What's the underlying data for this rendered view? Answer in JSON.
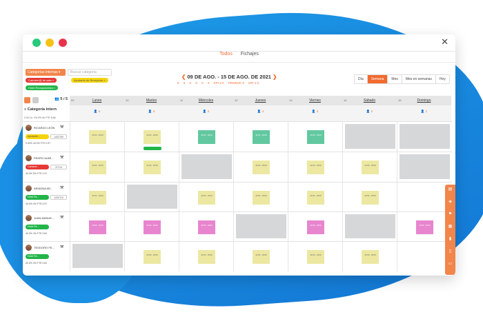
{
  "tabs": [
    "Todos",
    "Fichajes"
  ],
  "filters": {
    "category_button": "Categorías internas",
    "search_placeholder": "Buscar categoría",
    "chips": [
      {
        "label": "Camarer@ de sala",
        "color": "#e53935"
      },
      {
        "label": "Ayudante de Recepción",
        "color": "#f5d40f"
      },
      {
        "label": "Hotel Recepcionista",
        "color": "#22b54a"
      }
    ]
  },
  "header": {
    "period": "09 DE AGO. - 15 DE AGO. DE 2021",
    "kpis": [
      "0",
      "0",
      "0",
      "0",
      "0",
      "0",
      "KPI 3 0",
      "PRODUC 0",
      "KPI 1 0"
    ]
  },
  "views": [
    "Día",
    "Semana",
    "Mes",
    "Mes en semanas",
    "Hoy"
  ],
  "active_view": "Semana",
  "sidebar": {
    "count": "5 / 5",
    "header": "Categoría intern",
    "stats": "0.00 Cu. 0% 5% 0h FTE 6.56"
  },
  "days": [
    {
      "num": "09",
      "name": "Lunes",
      "count": "4"
    },
    {
      "num": "10",
      "name": "Martes",
      "count": "4"
    },
    {
      "num": "11",
      "name": "Miércoles",
      "count": "4"
    },
    {
      "num": "12",
      "name": "Jueves",
      "count": "4"
    },
    {
      "num": "13",
      "name": "Viernes",
      "count": "4"
    },
    {
      "num": "14",
      "name": "Sábado",
      "count": "2"
    },
    {
      "num": "15",
      "name": "Domingo",
      "count": "1"
    }
  ],
  "employees": [
    {
      "name": "RICARDO LEÓN",
      "badge": "Ayudante...",
      "badge_color": "#f5d40f",
      "code": "14/07/99",
      "stats": "0.00% 40.0% FTE 0.97"
    },
    {
      "name": "PEDRO ALBE...",
      "badge": "Camarer...",
      "badge_color": "#e53935",
      "code": "2/7/10",
      "stats": "40.0% 5% FTE 0.97"
    },
    {
      "name": "ARIADNA AR...",
      "badge": "Hotel Re...",
      "badge_color": "#22b54a",
      "code": "12/07/19",
      "stats": "40.0% 4% FTE 0.97"
    },
    {
      "name": "JUAN MANUE...",
      "badge": "Hotel Re...",
      "badge_color": "#22b54a",
      "code": "",
      "stats": "40.0% 4% FTE 0.81"
    },
    {
      "name": "TEODORO FE...",
      "badge": "Hotel Re...",
      "badge_color": "#22b54a",
      "code": "",
      "stats": "40.0% 4% FTE 0.81"
    }
  ],
  "shift_label": "10:00 - 18:00"
}
